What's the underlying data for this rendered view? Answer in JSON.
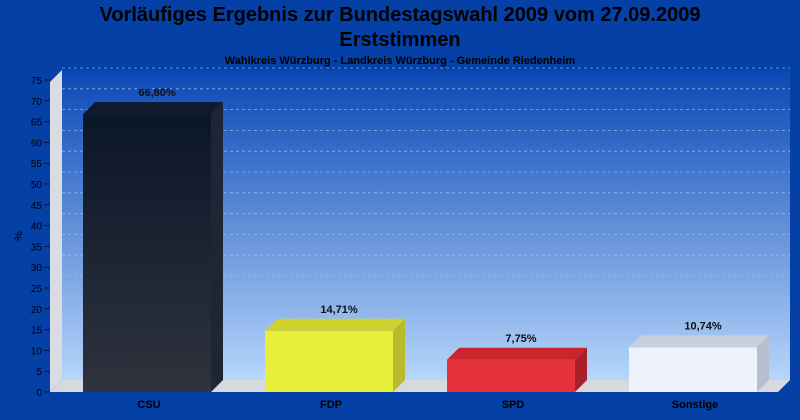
{
  "title_line1": "Vorläufiges Ergebnis zur Bundestagswahl 2009 vom 27.09.2009",
  "title_line2": "Erststimmen",
  "subtitle": "Wahlkreis Würzburg - Landkreis Würzburg - Gemeinde Riedenheim",
  "colors": {
    "background": "#0440a6",
    "CSU": "#1c2230",
    "FDP": "#e8ef3a",
    "SPD": "#e5333b",
    "Sonstige": "#eef2fb"
  },
  "chart_data": {
    "type": "bar",
    "title": "Vorläufiges Ergebnis zur Bundestagswahl 2009 vom 27.09.2009 Erststimmen",
    "subtitle": "Wahlkreis Würzburg - Landkreis Würzburg - Gemeinde Riedenheim",
    "categories": [
      "CSU",
      "FDP",
      "SPD",
      "Sonstige"
    ],
    "values": [
      66.8,
      14.71,
      7.75,
      10.74
    ],
    "value_labels": [
      "66,80%",
      "14,71%",
      "7,75%",
      "10,74%"
    ],
    "ylabel": "%",
    "xlabel": "",
    "ylim": [
      0,
      75
    ],
    "yticks": [
      0,
      5,
      10,
      15,
      20,
      25,
      30,
      35,
      40,
      45,
      50,
      55,
      60,
      65,
      70,
      75
    ],
    "grid": true,
    "legend": false
  }
}
